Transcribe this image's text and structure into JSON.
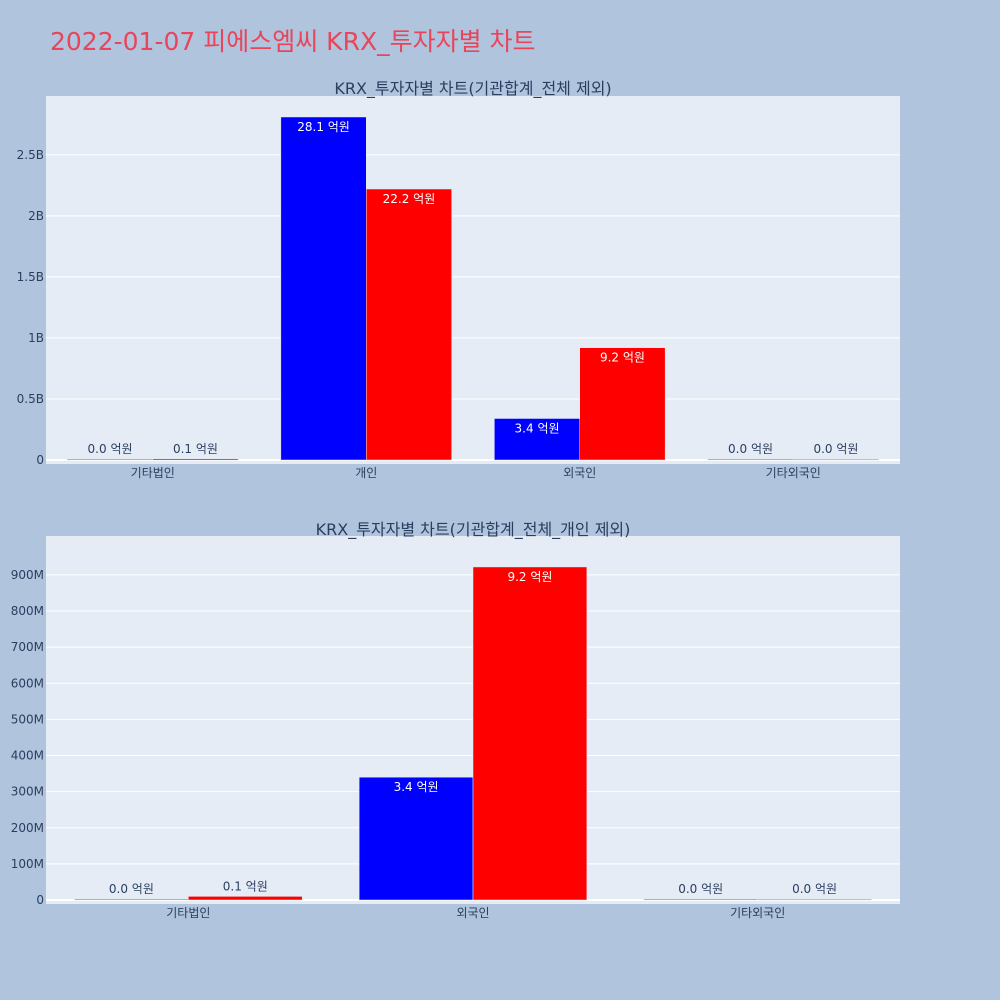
{
  "title": "2022-01-07 피에스엠씨 KRX_투자자별 차트",
  "colors": {
    "background": "#b0c4de",
    "plot_bg": "#e5ecf6",
    "buy": "#0000ff",
    "sell": "#ff0000",
    "title": "#e8455a",
    "text": "#2a3f5f"
  },
  "chart_data": [
    {
      "type": "bar",
      "title": "KRX_투자자별 차트(기관합계_전체 제외)",
      "categories": [
        "기타법인",
        "개인",
        "외국인",
        "기타외국인"
      ],
      "ylim": [
        0,
        2900000000
      ],
      "yticks": [
        0,
        500000000,
        1000000000,
        1500000000,
        2000000000,
        2500000000
      ],
      "ytick_labels": [
        "0",
        "0.5B",
        "1B",
        "1.5B",
        "2B",
        "2.5B"
      ],
      "grid": true,
      "series": [
        {
          "color": "#0000ff",
          "values": [
            1000000,
            2810000000,
            340000000,
            300000
          ],
          "labels": [
            "0.0 억원",
            "28.1 억원",
            "3.4 억원",
            "0.0 억원"
          ]
        },
        {
          "color": "#ff0000",
          "values": [
            10000000,
            2220000000,
            920000000,
            200000
          ],
          "labels": [
            "0.1 억원",
            "22.2 억원",
            "9.2 억원",
            "0.0 억원"
          ]
        }
      ]
    },
    {
      "type": "bar",
      "title": "KRX_투자자별 차트(기관합계_전체_개인 제외)",
      "categories": [
        "기타법인",
        "외국인",
        "기타외국인"
      ],
      "ylim": [
        0,
        980000000
      ],
      "yticks": [
        0,
        100000000,
        200000000,
        300000000,
        400000000,
        500000000,
        600000000,
        700000000,
        800000000,
        900000000
      ],
      "ytick_labels": [
        "0",
        "100M",
        "200M",
        "300M",
        "400M",
        "500M",
        "600M",
        "700M",
        "800M",
        "900M"
      ],
      "grid": true,
      "series": [
        {
          "color": "#0000ff",
          "values": [
            1000000,
            340000000,
            1000000
          ],
          "labels": [
            "0.0 억원",
            "3.4 억원",
            "0.0 억원"
          ]
        },
        {
          "color": "#ff0000",
          "values": [
            10000000,
            922000000,
            1000000
          ],
          "labels": [
            "0.1 억원",
            "9.2 억원",
            "0.0 억원"
          ]
        }
      ]
    }
  ]
}
